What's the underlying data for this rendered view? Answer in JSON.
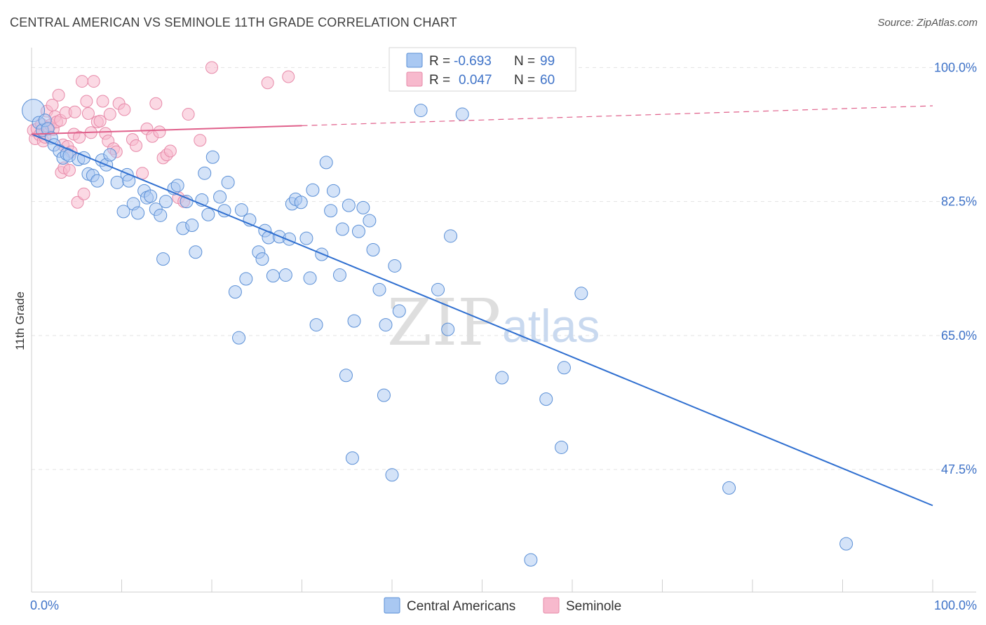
{
  "header": {
    "title": "CENTRAL AMERICAN VS SEMINOLE 11TH GRADE CORRELATION CHART",
    "source": "Source: ZipAtlas.com"
  },
  "watermark": {
    "zip": "ZIP",
    "atlas": "atlas"
  },
  "legend": {
    "r_label": "R =",
    "n_label": "N =",
    "rows": [
      {
        "r": "-0.693",
        "n": "99",
        "color": "#6a9fe0"
      },
      {
        "r": "0.047",
        "n": "60",
        "color": "#ef8fae"
      }
    ]
  },
  "bottom_legend": [
    "Central Americans",
    "Seminole"
  ],
  "colors": {
    "blue_fill": "#a9c8f2",
    "blue_stroke": "#5a8fd6",
    "blue_line": "#2f6fd0",
    "pink_fill": "#f7b9cd",
    "pink_stroke": "#e78aa9",
    "pink_line": "#e0608b",
    "axis_text": "#3f73c8",
    "grid": "#e3e3e3"
  },
  "chart_data": {
    "type": "scatter",
    "title": "CENTRAL AMERICAN VS SEMINOLE 11TH GRADE CORRELATION CHART",
    "xlabel": "",
    "ylabel": "11th Grade",
    "xlim": [
      0,
      100
    ],
    "ylim": [
      31.5,
      101.5
    ],
    "x_tick_labels": [
      "0.0%",
      "100.0%"
    ],
    "y_ticks": [
      47.5,
      65.0,
      82.5,
      100.0
    ],
    "y_tick_labels": [
      "47.5%",
      "65.0%",
      "82.5%",
      "100.0%"
    ],
    "grid": true,
    "legend_position": "top-center",
    "series": [
      {
        "name": "Central Americans",
        "r": -0.693,
        "n": 99,
        "trend": {
          "x": [
            0,
            100
          ],
          "y": [
            91.3,
            42.8
          ]
        },
        "points": [
          [
            0.2,
            94.4
          ],
          [
            0.8,
            92.8
          ],
          [
            1.2,
            91.8
          ],
          [
            1.5,
            93.1
          ],
          [
            1.8,
            92.0
          ],
          [
            2.2,
            90.8
          ],
          [
            2.5,
            89.9
          ],
          [
            3.1,
            89.1
          ],
          [
            3.5,
            88.2
          ],
          [
            3.9,
            88.7
          ],
          [
            4.2,
            88.5
          ],
          [
            5.2,
            88.0
          ],
          [
            5.8,
            88.2
          ],
          [
            6.3,
            86.1
          ],
          [
            6.8,
            85.9
          ],
          [
            7.3,
            85.2
          ],
          [
            7.8,
            87.9
          ],
          [
            8.3,
            87.3
          ],
          [
            8.7,
            88.6
          ],
          [
            9.5,
            85.0
          ],
          [
            10.2,
            81.2
          ],
          [
            10.6,
            86.0
          ],
          [
            10.8,
            85.2
          ],
          [
            11.3,
            82.2
          ],
          [
            11.8,
            81.0
          ],
          [
            12.5,
            83.9
          ],
          [
            12.8,
            83.0
          ],
          [
            13.2,
            83.2
          ],
          [
            13.8,
            81.5
          ],
          [
            14.3,
            80.7
          ],
          [
            14.6,
            75.0
          ],
          [
            14.9,
            82.5
          ],
          [
            15.8,
            84.2
          ],
          [
            16.2,
            84.6
          ],
          [
            16.8,
            79.0
          ],
          [
            17.2,
            82.5
          ],
          [
            17.8,
            79.4
          ],
          [
            18.2,
            75.9
          ],
          [
            18.9,
            82.7
          ],
          [
            19.2,
            86.2
          ],
          [
            19.6,
            80.8
          ],
          [
            20.1,
            88.3
          ],
          [
            20.9,
            83.1
          ],
          [
            21.4,
            81.3
          ],
          [
            21.8,
            85.0
          ],
          [
            22.6,
            70.7
          ],
          [
            23.0,
            64.7
          ],
          [
            23.3,
            81.4
          ],
          [
            23.8,
            72.4
          ],
          [
            24.2,
            80.1
          ],
          [
            25.2,
            75.9
          ],
          [
            25.6,
            75.0
          ],
          [
            25.9,
            78.7
          ],
          [
            26.3,
            77.8
          ],
          [
            26.8,
            72.8
          ],
          [
            27.5,
            77.9
          ],
          [
            28.2,
            72.9
          ],
          [
            28.6,
            77.6
          ],
          [
            28.9,
            82.2
          ],
          [
            29.3,
            82.8
          ],
          [
            29.9,
            82.4
          ],
          [
            30.5,
            77.7
          ],
          [
            30.9,
            72.5
          ],
          [
            31.2,
            84.0
          ],
          [
            31.6,
            66.4
          ],
          [
            32.2,
            75.6
          ],
          [
            32.7,
            87.6
          ],
          [
            33.2,
            81.3
          ],
          [
            33.5,
            83.9
          ],
          [
            34.2,
            72.9
          ],
          [
            34.5,
            78.9
          ],
          [
            34.9,
            59.8
          ],
          [
            35.2,
            82.0
          ],
          [
            35.6,
            49.0
          ],
          [
            35.8,
            66.9
          ],
          [
            36.3,
            78.6
          ],
          [
            36.8,
            81.7
          ],
          [
            37.5,
            80.0
          ],
          [
            37.9,
            76.2
          ],
          [
            38.6,
            71.0
          ],
          [
            39.1,
            57.2
          ],
          [
            39.3,
            66.4
          ],
          [
            40.0,
            46.8
          ],
          [
            40.3,
            74.1
          ],
          [
            40.8,
            68.2
          ],
          [
            43.2,
            94.4
          ],
          [
            45.1,
            71.0
          ],
          [
            46.2,
            65.8
          ],
          [
            46.5,
            78.0
          ],
          [
            47.8,
            93.9
          ],
          [
            48.2,
            100.0
          ],
          [
            52.2,
            59.5
          ],
          [
            55.4,
            35.7
          ],
          [
            57.1,
            56.7
          ],
          [
            58.8,
            50.4
          ],
          [
            59.1,
            60.8
          ],
          [
            61.0,
            70.5
          ],
          [
            77.4,
            45.1
          ],
          [
            90.4,
            37.8
          ]
        ]
      },
      {
        "name": "Seminole",
        "r": 0.047,
        "n": 60,
        "trend": {
          "x": [
            0,
            100
          ],
          "y": [
            91.3,
            95.0
          ]
        },
        "points": [
          [
            0.2,
            91.8
          ],
          [
            0.4,
            90.7
          ],
          [
            0.6,
            92.0
          ],
          [
            0.9,
            91.2
          ],
          [
            1.1,
            92.6
          ],
          [
            1.3,
            90.4
          ],
          [
            1.5,
            90.9
          ],
          [
            1.7,
            94.3
          ],
          [
            1.9,
            92.2
          ],
          [
            2.1,
            92.5
          ],
          [
            2.3,
            95.1
          ],
          [
            2.4,
            91.9
          ],
          [
            2.6,
            93.6
          ],
          [
            2.8,
            92.9
          ],
          [
            3.0,
            96.4
          ],
          [
            3.2,
            93.1
          ],
          [
            3.3,
            86.3
          ],
          [
            3.5,
            89.9
          ],
          [
            3.6,
            86.9
          ],
          [
            3.8,
            94.1
          ],
          [
            4.0,
            89.7
          ],
          [
            4.2,
            86.6
          ],
          [
            4.4,
            89.0
          ],
          [
            4.7,
            91.3
          ],
          [
            4.8,
            94.2
          ],
          [
            5.1,
            82.4
          ],
          [
            5.3,
            90.9
          ],
          [
            5.6,
            98.2
          ],
          [
            5.8,
            83.5
          ],
          [
            6.1,
            95.6
          ],
          [
            6.3,
            94.0
          ],
          [
            6.6,
            91.5
          ],
          [
            6.9,
            98.2
          ],
          [
            7.3,
            92.9
          ],
          [
            7.6,
            93.0
          ],
          [
            7.9,
            95.6
          ],
          [
            8.2,
            91.4
          ],
          [
            8.5,
            90.4
          ],
          [
            8.7,
            93.9
          ],
          [
            9.1,
            89.4
          ],
          [
            9.4,
            89.0
          ],
          [
            9.7,
            95.3
          ],
          [
            10.3,
            94.5
          ],
          [
            11.2,
            90.6
          ],
          [
            11.6,
            89.8
          ],
          [
            12.3,
            86.2
          ],
          [
            12.8,
            92.0
          ],
          [
            13.4,
            91.0
          ],
          [
            13.8,
            95.3
          ],
          [
            14.2,
            91.6
          ],
          [
            14.6,
            88.2
          ],
          [
            15.0,
            88.6
          ],
          [
            15.4,
            89.1
          ],
          [
            16.3,
            83.0
          ],
          [
            16.9,
            82.5
          ],
          [
            17.4,
            93.9
          ],
          [
            18.7,
            90.5
          ],
          [
            20.0,
            100.0
          ],
          [
            26.2,
            98.0
          ],
          [
            28.5,
            98.8
          ]
        ]
      }
    ]
  }
}
